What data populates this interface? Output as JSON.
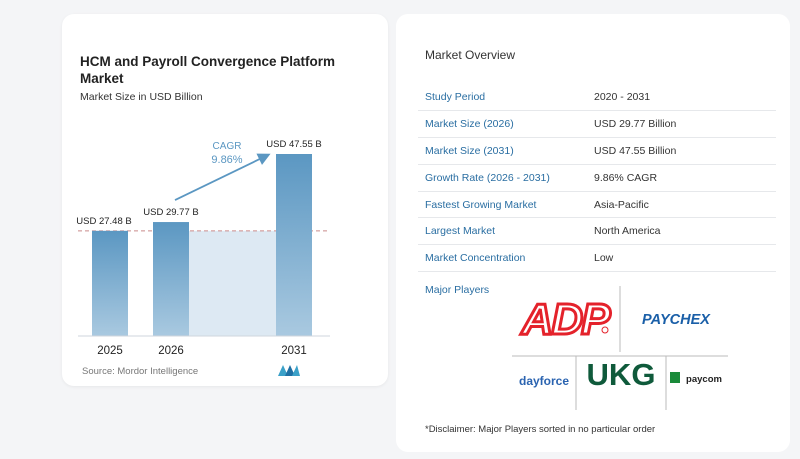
{
  "chart": {
    "title": "HCM and Payroll Convergence Platform Market",
    "subtitle": "Market Size in USD Billion",
    "cagr_label": "CAGR",
    "cagr_value": "9.86%",
    "source": "Source:  Mordor Intelligence"
  },
  "chart_data": {
    "type": "bar",
    "categories": [
      "2025",
      "2026",
      "2031"
    ],
    "values": [
      27.48,
      29.77,
      47.55
    ],
    "data_labels": [
      "USD 27.48 B",
      "USD 29.77 B",
      "USD 47.55 B"
    ],
    "title": "HCM and Payroll Convergence Platform Market",
    "subtitle": "Market Size in USD Billion",
    "ylim": [
      0,
      50
    ],
    "grid": false
  },
  "overview": {
    "title": "Market Overview",
    "rows": [
      {
        "label": "Study Period",
        "value": "2020 - 2031"
      },
      {
        "label": "Market Size (2026)",
        "value": "USD 29.77 Billion"
      },
      {
        "label": "Market Size (2031)",
        "value": "USD 47.55 Billion"
      },
      {
        "label": "Growth Rate (2026 - 2031)",
        "value": "9.86% CAGR"
      },
      {
        "label": "Fastest Growing Market",
        "value": "Asia-Pacific"
      },
      {
        "label": "Largest Market",
        "value": "North America"
      },
      {
        "label": "Market Concentration",
        "value": "Low"
      }
    ],
    "players_label": "Major Players",
    "players": [
      "ADP",
      "PAYCHEX",
      "dayforce",
      "UKG",
      "paycom"
    ],
    "disclaimer": "*Disclaimer: Major Players sorted in no particular order"
  },
  "colors": {
    "bar": "#5b97c2",
    "bar_light": "#a9c9e0",
    "shade": "#dde9f3",
    "accent_blue": "#2a6ea2",
    "adp_red": "#e4222b",
    "ukg_green": "#0f5a3b"
  }
}
